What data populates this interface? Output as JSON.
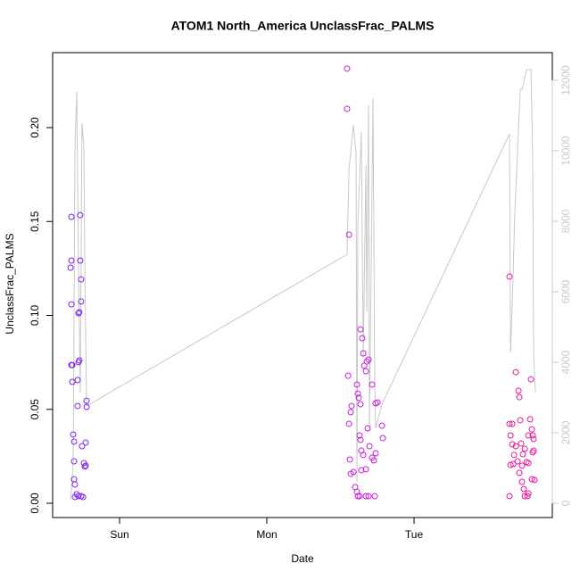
{
  "chart_data": {
    "type": "scatter",
    "title": "ATOM1 North_America UnclassFrac_PALMS",
    "x_label": "Date",
    "y_label": "UnclassFrac_PALMS",
    "xlim": [
      -0.4545,
      2.939
    ],
    "ylim": [
      -0.0076,
      0.2399
    ],
    "y2lim": [
      -405,
      12785
    ],
    "xticks": [
      {
        "value": 0,
        "label": "Sun"
      },
      {
        "value": 1,
        "label": "Mon"
      },
      {
        "value": 2,
        "label": "Tue"
      }
    ],
    "yticks": [
      {
        "value": 0,
        "label": "0.00"
      },
      {
        "value": 0.05,
        "label": "0.05"
      },
      {
        "value": 0.1,
        "label": "0.10"
      },
      {
        "value": 0.15,
        "label": "0.15"
      },
      {
        "value": 0.2,
        "label": "0.20"
      }
    ],
    "y2ticks": [
      0,
      2000,
      4000,
      6000,
      8000,
      10000,
      12000
    ],
    "series": [
      {
        "type": "line",
        "axis": "y2",
        "color": "#c8c8c8",
        "x": [
          -0.333,
          -0.315,
          -0.303,
          -0.291,
          -0.279,
          -0.267,
          -0.255,
          -0.242,
          -0.236,
          -0.224,
          1.545,
          1.558,
          1.588,
          1.606,
          1.612,
          1.618,
          1.63,
          1.642,
          1.655,
          1.673,
          1.679,
          1.691,
          1.697,
          1.721,
          1.733,
          1.739,
          1.782,
          2.648,
          2.655,
          2.667,
          2.685,
          2.721,
          2.733,
          2.764,
          2.794,
          2.806,
          2.812,
          2.824
        ],
        "values": [
          101,
          1114,
          10101,
          11671,
          6684,
          3139,
          10785,
          10101,
          6684,
          2759,
          7063,
          9468,
          10734,
          9975,
          608,
          7949,
          9215,
          10532,
          4152,
          9595,
          5418,
          11291,
          2127,
          11494,
          3392,
          2127,
          2810,
          10481,
          4278,
          5671,
          8329,
          11747,
          11747,
          12304,
          12304,
          9722,
          4152,
          3139
        ]
      },
      {
        "type": "scatter",
        "color": "#7f22f0",
        "x": [
          -0.327,
          -0.327,
          -0.333,
          -0.327,
          -0.327,
          -0.321,
          -0.321,
          -0.315,
          -0.309,
          -0.309,
          -0.309,
          -0.303,
          -0.303,
          -0.291,
          -0.279,
          -0.285,
          -0.285,
          -0.267,
          -0.267,
          -0.261,
          -0.261,
          -0.273,
          -0.279,
          -0.273,
          -0.279,
          -0.255,
          -0.242,
          -0.236,
          -0.23,
          -0.224,
          -0.224,
          -0.23,
          -0.248,
          -0.261
        ],
        "values": [
          0.1525,
          0.1292,
          0.1254,
          0.1059,
          0.0736,
          0.0736,
          0.0646,
          0.0366,
          0.0328,
          0.0223,
          0.0128,
          0.01,
          0.0033,
          0.0048,
          0.0038,
          0.0518,
          0.0656,
          0.1534,
          0.1292,
          0.1192,
          0.1074,
          0.1017,
          0.1012,
          0.076,
          0.0751,
          0.0304,
          0.0214,
          0.0195,
          0.02,
          0.0546,
          0.0513,
          0.0323,
          0.0033,
          0.0038
        ]
      },
      {
        "type": "scatter",
        "color": "#c81ee0",
        "x": [
          1.545,
          1.545,
          1.558,
          1.552,
          1.558,
          1.57,
          1.576,
          1.564,
          1.57,
          1.588,
          1.6,
          1.612,
          1.618,
          1.63,
          1.612,
          1.618,
          1.624,
          1.636,
          1.636,
          1.648,
          1.655,
          1.661,
          1.673,
          1.679,
          1.691,
          1.715,
          1.739,
          1.752,
          1.63,
          1.636,
          1.642,
          1.655,
          1.642,
          1.673,
          1.685,
          1.697,
          1.715,
          1.727,
          1.739,
          1.782,
          1.788,
          1.673,
          1.691,
          1.733
        ],
        "values": [
          0.2314,
          0.21,
          0.143,
          0.0679,
          0.0423,
          0.0485,
          0.0518,
          0.0233,
          0.0157,
          0.0166,
          0.0086,
          0.0062,
          0.0038,
          0.0038,
          0.0632,
          0.0584,
          0.0561,
          0.0527,
          0.0926,
          0.0879,
          0.0798,
          0.0732,
          0.0703,
          0.0755,
          0.0765,
          0.0632,
          0.0532,
          0.0537,
          0.0361,
          0.0337,
          0.028,
          0.0257,
          0.0176,
          0.0181,
          0.0399,
          0.0304,
          0.0242,
          0.0228,
          0.0266,
          0.0413,
          0.0347,
          0.0038,
          0.0038,
          0.0038
        ]
      },
      {
        "type": "scatter",
        "color": "#e6189e",
        "x": [
          2.648,
          2.648,
          2.655,
          2.667,
          2.667,
          2.673,
          2.691,
          2.691,
          2.709,
          2.715,
          2.721,
          2.727,
          2.733,
          2.733,
          2.745,
          2.739,
          2.752,
          2.77,
          2.776,
          2.788,
          2.794,
          2.8,
          2.806,
          2.812,
          2.806,
          2.812,
          2.818,
          2.776,
          2.764,
          2.655,
          2.679,
          2.703,
          2.715,
          2.752,
          2.776,
          2.8,
          2.648
        ],
        "values": [
          0.1207,
          0.0423,
          0.0361,
          0.0423,
          0.0314,
          0.0209,
          0.0304,
          0.0698,
          0.0599,
          0.0565,
          0.0442,
          0.0318,
          0.02,
          0.0114,
          0.0076,
          0.0261,
          0.0038,
          0.0038,
          0.0361,
          0.0447,
          0.066,
          0.0394,
          0.0361,
          0.0342,
          0.0271,
          0.028,
          0.0124,
          0.0214,
          0.0219,
          0.0204,
          0.0257,
          0.0223,
          0.0162,
          0.029,
          0.0052,
          0.0128,
          0.0038
        ]
      }
    ]
  }
}
